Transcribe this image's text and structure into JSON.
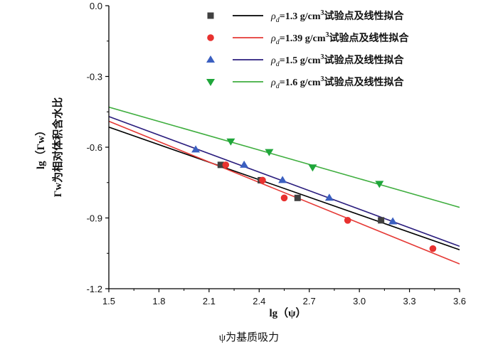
{
  "chart_data": {
    "type": "scatter",
    "xlabel": "lg（ψ）",
    "ylabel_line1": "lg（Γw）",
    "ylabel_line2": "Γw为相对体积含水比",
    "caption": "ψ为基质吸力",
    "xlim": [
      1.5,
      3.6
    ],
    "ylim": [
      -1.2,
      0.0
    ],
    "x_ticks": [
      1.5,
      1.8,
      2.1,
      2.4,
      2.7,
      3.0,
      3.3,
      3.6
    ],
    "x_tick_labels": [
      "1.5",
      "1.8",
      "2.1",
      "2.4",
      "2.7",
      "3.0",
      "3.3",
      "3.6"
    ],
    "y_ticks": [
      0.0,
      -0.3,
      -0.6,
      -0.9,
      -1.2
    ],
    "y_tick_labels": [
      "0.0",
      "-0.3",
      "-0.6",
      "-0.9",
      "-1.2"
    ],
    "grid": false,
    "legend_position": "top-right",
    "series": [
      {
        "name": "ρd=1.3 g/cm³试验点及线性拟合",
        "legend_symbol": "ρ",
        "legend_subscript": "d",
        "legend_text": "=1.3 g/cm",
        "legend_sup": "3",
        "legend_tail": "试验点及线性拟合",
        "marker": "square",
        "marker_color": "#404040",
        "line_color": "#000000",
        "points": [
          [
            2.17,
            -0.675
          ],
          [
            2.41,
            -0.74
          ],
          [
            2.63,
            -0.815
          ],
          [
            3.13,
            -0.91
          ]
        ],
        "fit": [
          [
            1.5,
            -0.515
          ],
          [
            3.6,
            -1.035
          ]
        ]
      },
      {
        "name": "ρd=1.39 g/cm³试验点及线性拟合",
        "legend_symbol": "ρ",
        "legend_subscript": "d",
        "legend_text": "=1.39 g/cm",
        "legend_sup": "3",
        "legend_tail": "试验点及线性拟合",
        "marker": "circle",
        "marker_color": "#e8312f",
        "line_color": "#e53935",
        "points": [
          [
            2.2,
            -0.675
          ],
          [
            2.42,
            -0.74
          ],
          [
            2.55,
            -0.815
          ],
          [
            2.93,
            -0.91
          ],
          [
            3.44,
            -1.03
          ]
        ],
        "fit": [
          [
            1.5,
            -0.49
          ],
          [
            3.6,
            -1.095
          ]
        ]
      },
      {
        "name": "ρd=1.5 g/cm³试验点及线性拟合",
        "legend_symbol": "ρ",
        "legend_subscript": "d",
        "legend_text": "=1.5 g/cm",
        "legend_sup": "3",
        "legend_tail": "试验点及线性拟合",
        "marker": "triangle-up",
        "marker_color": "#3b5fc0",
        "line_color": "#2b1e7e",
        "points": [
          [
            2.02,
            -0.61
          ],
          [
            2.31,
            -0.675
          ],
          [
            2.54,
            -0.74
          ],
          [
            2.82,
            -0.815
          ],
          [
            3.2,
            -0.915
          ]
        ],
        "fit": [
          [
            1.5,
            -0.47
          ],
          [
            3.6,
            -1.02
          ]
        ]
      },
      {
        "name": "ρd=1.6 g/cm³试验点及线性拟合",
        "legend_symbol": "ρ",
        "legend_subscript": "d",
        "legend_text": "=1.6 g/cm",
        "legend_sup": "3",
        "legend_tail": "试验点及线性拟合",
        "marker": "triangle-down",
        "marker_color": "#1fa63a",
        "line_color": "#3fae3f",
        "points": [
          [
            2.23,
            -0.575
          ],
          [
            2.46,
            -0.62
          ],
          [
            2.72,
            -0.685
          ],
          [
            3.12,
            -0.755
          ]
        ],
        "fit": [
          [
            1.5,
            -0.43
          ],
          [
            3.6,
            -0.855
          ]
        ]
      }
    ]
  }
}
